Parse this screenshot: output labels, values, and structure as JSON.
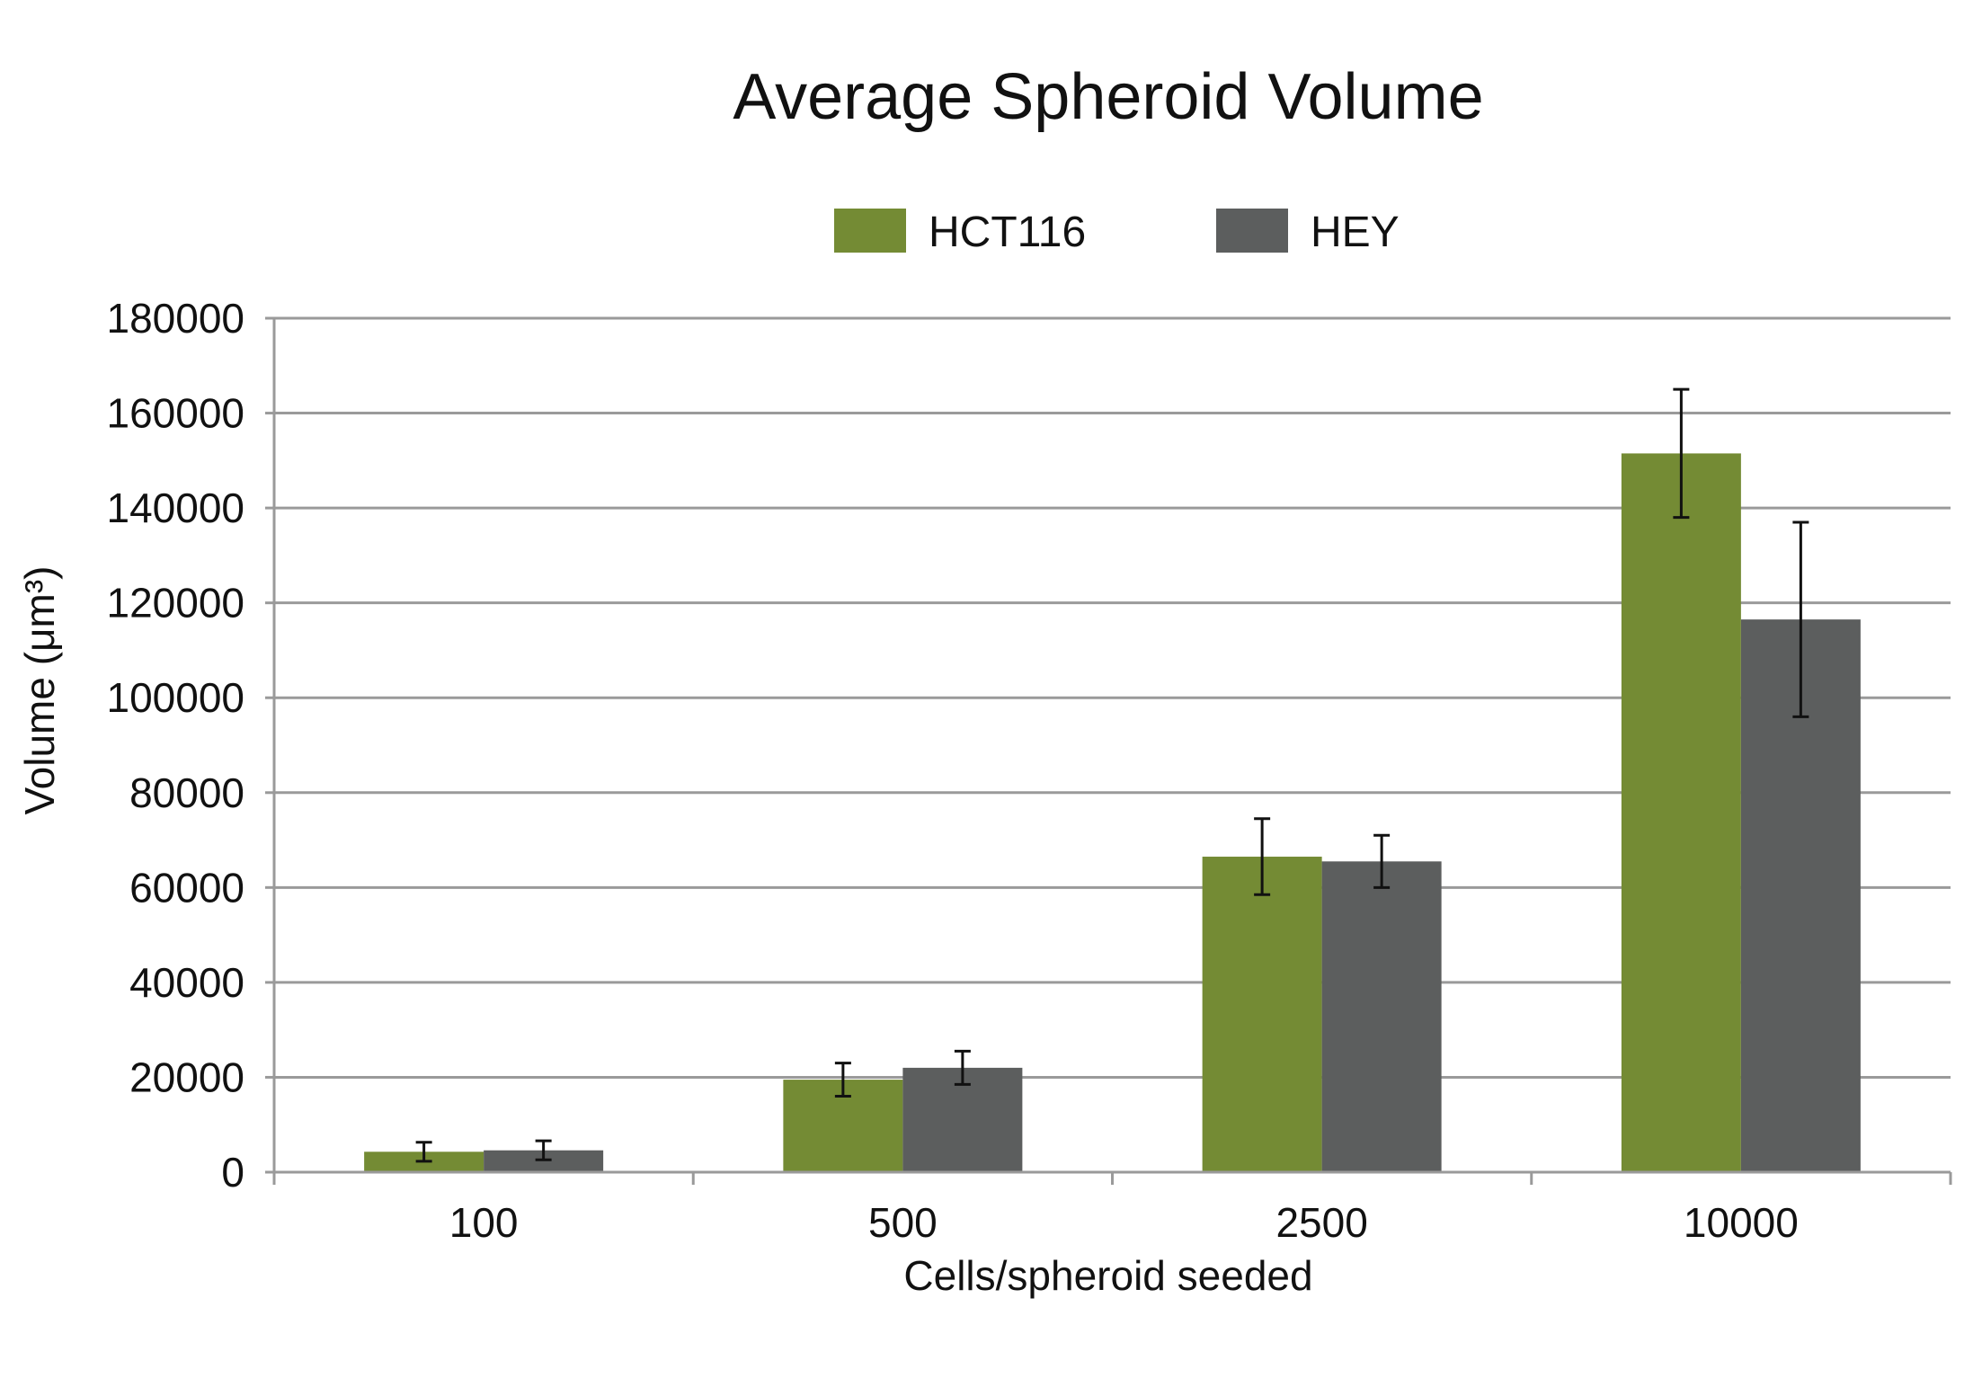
{
  "chart_data": {
    "type": "bar",
    "title": "Average Spheroid Volume",
    "xlabel": "Cells/spheroid seeded",
    "ylabel": "Volume (μm³)",
    "categories": [
      "100",
      "500",
      "2500",
      "10000"
    ],
    "ylim": [
      0,
      180000
    ],
    "yticks": [
      0,
      20000,
      40000,
      60000,
      80000,
      100000,
      120000,
      140000,
      160000,
      180000
    ],
    "ytick_labels": [
      "0",
      "20000",
      "40000",
      "60000",
      "80000",
      "100000",
      "120000",
      "140000",
      "160000",
      "180000"
    ],
    "grid": true,
    "legend_position": "top-center",
    "series": [
      {
        "name": "HCT116",
        "color": "#748b34",
        "values": [
          4300,
          19500,
          66500,
          151500
        ],
        "errors": [
          2000,
          3500,
          8000,
          13500
        ]
      },
      {
        "name": "HEY",
        "color": "#5c5e5e",
        "values": [
          4600,
          22000,
          65500,
          116500
        ],
        "errors": [
          2000,
          3500,
          5500,
          20500
        ]
      }
    ]
  }
}
